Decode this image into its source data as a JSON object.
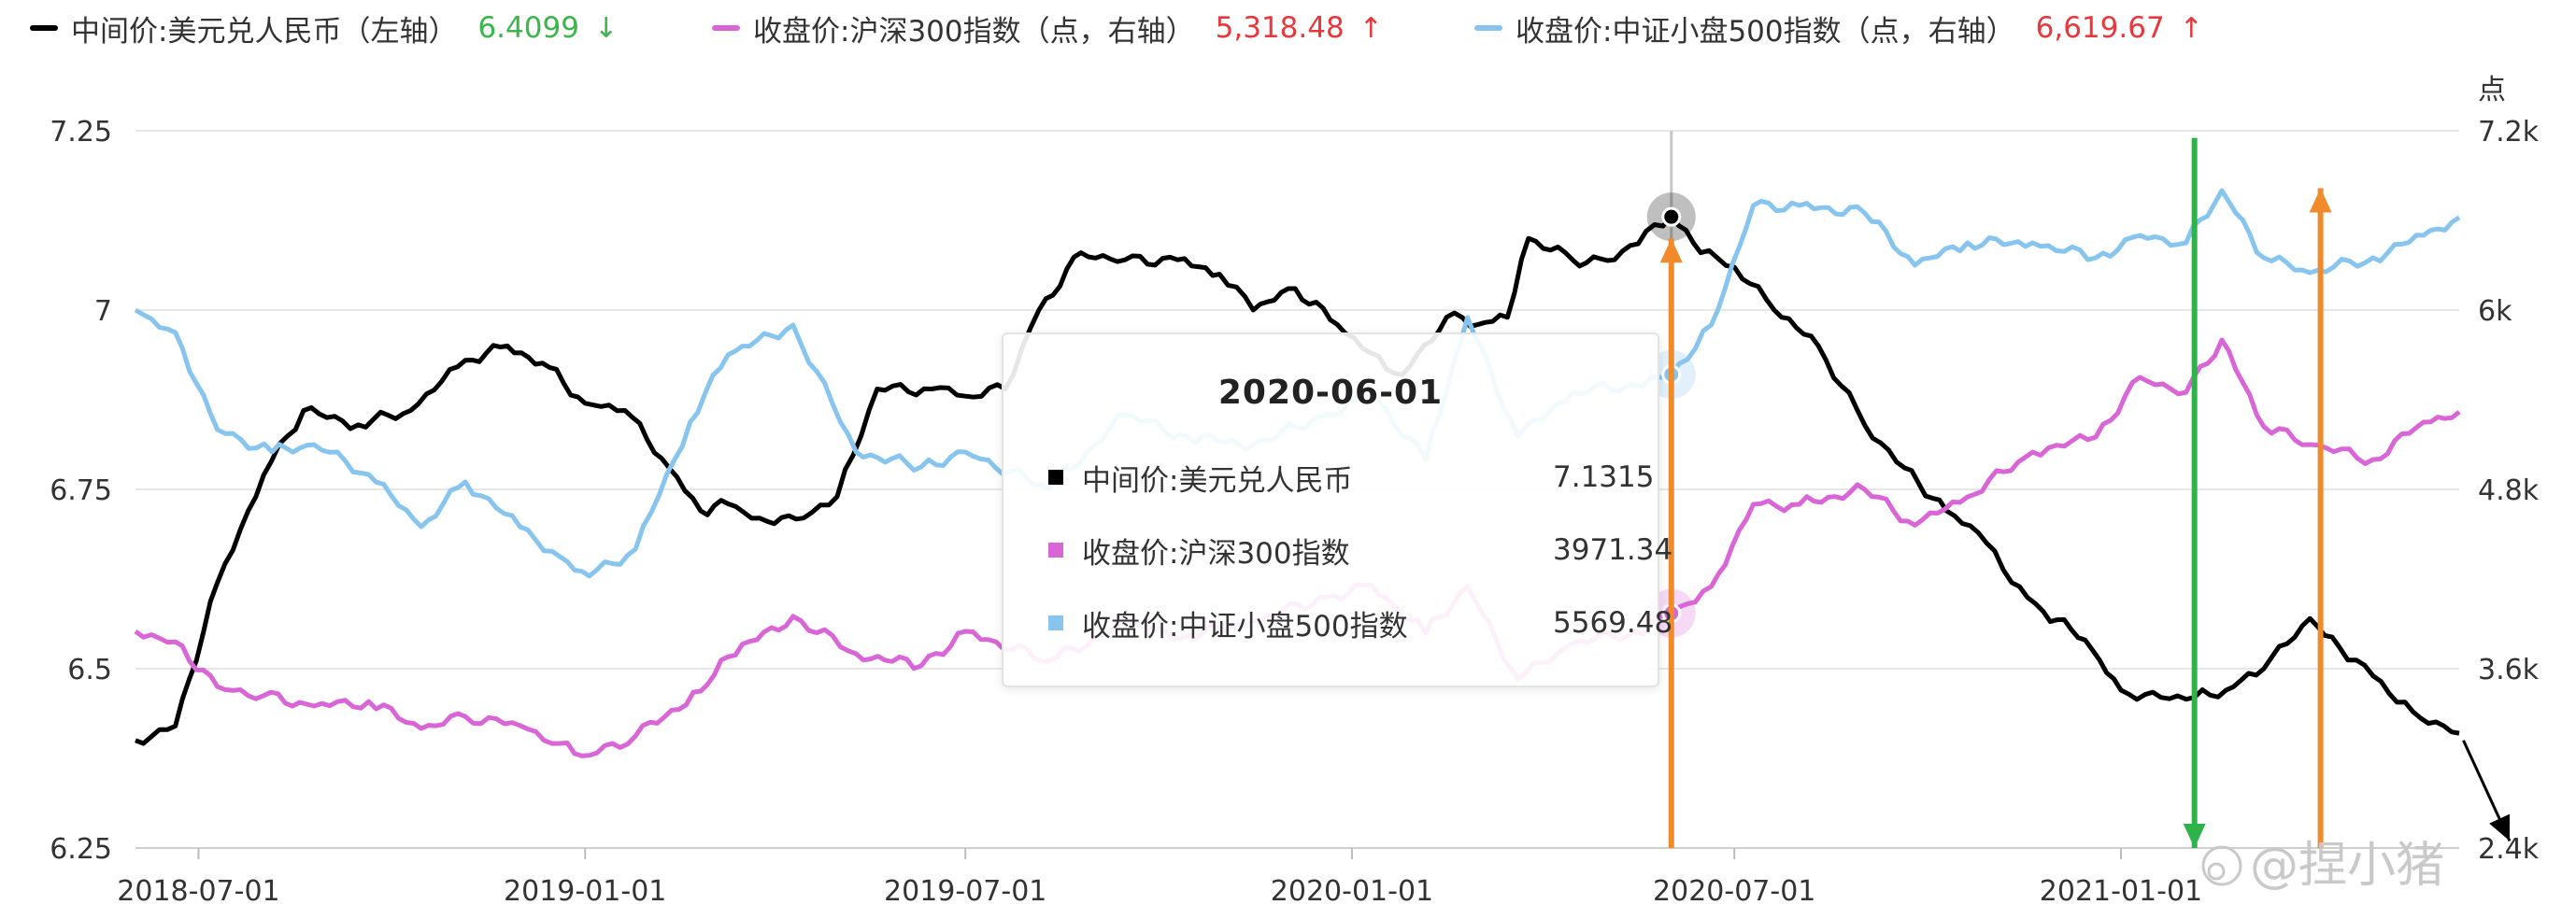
{
  "legend": [
    {
      "name": "中间价:美元兑人民币（左轴）",
      "value": "6.4099",
      "arrow": "↓",
      "color": "#000000",
      "value_color": "#3cb54a"
    },
    {
      "name": "收盘价:沪深300指数（点，右轴）",
      "value": "5,318.48",
      "arrow": "↑",
      "color": "#d966d6",
      "value_color": "#e8383d"
    },
    {
      "name": "收盘价:中证小盘500指数（点，右轴）",
      "value": "6,619.67",
      "arrow": "↑",
      "color": "#87c5ef",
      "value_color": "#e8383d"
    }
  ],
  "tooltip": {
    "date": "2020-06-01",
    "rows": [
      {
        "name": "中间价:美元兑人民币",
        "value": "7.1315",
        "color": "#000000"
      },
      {
        "name": "收盘价:沪深300指数",
        "value": "3971.34",
        "color": "#d966d6"
      },
      {
        "name": "收盘价:中证小盘500指数",
        "value": "5569.48",
        "color": "#87c5ef"
      }
    ]
  },
  "watermark": "@捏小猪",
  "chart_data": {
    "type": "line",
    "x_ticks": [
      "2018-07-01",
      "2019-01-01",
      "2019-07-01",
      "2020-01-01",
      "2020-07-01",
      "2021-01-01"
    ],
    "x_range": [
      "2018-06-01",
      "2021-06-11"
    ],
    "y_left": {
      "ticks": [
        "6.25",
        "6.5",
        "6.75",
        "7",
        "7.25"
      ],
      "range": [
        6.25,
        7.25
      ]
    },
    "y_right": {
      "unit": "点",
      "ticks": [
        "2.4k",
        "3.6k",
        "4.8k",
        "6k",
        "7.2k"
      ],
      "range": [
        2400,
        7200
      ]
    },
    "grid": true,
    "legend_position": "top",
    "series": [
      {
        "name": "中间价:美元兑人民币",
        "axis": "left",
        "color": "#000000",
        "points": [
          [
            "2018-06-01",
            6.4
          ],
          [
            "2018-06-20",
            6.42
          ],
          [
            "2018-07-10",
            6.62
          ],
          [
            "2018-08-01",
            6.77
          ],
          [
            "2018-08-20",
            6.86
          ],
          [
            "2018-09-15",
            6.84
          ],
          [
            "2018-10-10",
            6.86
          ],
          [
            "2018-11-05",
            6.93
          ],
          [
            "2018-11-25",
            6.95
          ],
          [
            "2018-12-15",
            6.92
          ],
          [
            "2019-01-01",
            6.87
          ],
          [
            "2019-01-20",
            6.86
          ],
          [
            "2019-02-10",
            6.78
          ],
          [
            "2019-02-25",
            6.72
          ],
          [
            "2019-03-10",
            6.73
          ],
          [
            "2019-03-25",
            6.71
          ],
          [
            "2019-04-15",
            6.71
          ],
          [
            "2019-05-01",
            6.74
          ],
          [
            "2019-05-20",
            6.89
          ],
          [
            "2019-06-15",
            6.89
          ],
          [
            "2019-07-01",
            6.88
          ],
          [
            "2019-07-20",
            6.89
          ],
          [
            "2019-08-05",
            7.0
          ],
          [
            "2019-08-25",
            7.08
          ],
          [
            "2019-09-15",
            7.07
          ],
          [
            "2019-10-10",
            7.07
          ],
          [
            "2019-10-30",
            7.05
          ],
          [
            "2019-11-15",
            7.0
          ],
          [
            "2019-12-05",
            7.03
          ],
          [
            "2019-12-25",
            6.98
          ],
          [
            "2020-01-10",
            6.94
          ],
          [
            "2020-01-25",
            6.91
          ],
          [
            "2020-02-15",
            6.99
          ],
          [
            "2020-03-01",
            6.98
          ],
          [
            "2020-03-15",
            6.99
          ],
          [
            "2020-03-25",
            7.1
          ],
          [
            "2020-04-15",
            7.07
          ],
          [
            "2020-05-05",
            7.07
          ],
          [
            "2020-05-20",
            7.11
          ],
          [
            "2020-06-01",
            7.13
          ],
          [
            "2020-06-15",
            7.08
          ],
          [
            "2020-07-01",
            7.06
          ],
          [
            "2020-07-20",
            7.0
          ],
          [
            "2020-08-10",
            6.95
          ],
          [
            "2020-09-01",
            6.84
          ],
          [
            "2020-09-20",
            6.78
          ],
          [
            "2020-10-10",
            6.72
          ],
          [
            "2020-10-25",
            6.69
          ],
          [
            "2020-11-10",
            6.62
          ],
          [
            "2020-11-25",
            6.58
          ],
          [
            "2020-12-15",
            6.54
          ],
          [
            "2021-01-01",
            6.47
          ],
          [
            "2021-01-20",
            6.46
          ],
          [
            "2021-02-05",
            6.46
          ],
          [
            "2021-02-20",
            6.47
          ],
          [
            "2021-03-10",
            6.5
          ],
          [
            "2021-04-01",
            6.57
          ],
          [
            "2021-04-15",
            6.53
          ],
          [
            "2021-05-01",
            6.49
          ],
          [
            "2021-05-20",
            6.44
          ],
          [
            "2021-06-11",
            6.41
          ]
        ]
      },
      {
        "name": "收盘价:沪深300指数",
        "axis": "right",
        "color": "#d966d6",
        "points": [
          [
            "2018-06-01",
            3850
          ],
          [
            "2018-06-20",
            3780
          ],
          [
            "2018-07-10",
            3480
          ],
          [
            "2018-08-01",
            3420
          ],
          [
            "2018-08-25",
            3350
          ],
          [
            "2018-09-20",
            3380
          ],
          [
            "2018-10-15",
            3200
          ],
          [
            "2018-11-05",
            3280
          ],
          [
            "2018-12-01",
            3220
          ],
          [
            "2018-12-20",
            3100
          ],
          [
            "2019-01-03",
            3020
          ],
          [
            "2019-01-25",
            3150
          ],
          [
            "2019-02-25",
            3450
          ],
          [
            "2019-03-10",
            3680
          ],
          [
            "2019-04-10",
            3950
          ],
          [
            "2019-05-10",
            3700
          ],
          [
            "2019-06-10",
            3620
          ],
          [
            "2019-07-01",
            3850
          ],
          [
            "2019-08-10",
            3650
          ],
          [
            "2019-09-15",
            3900
          ],
          [
            "2019-10-15",
            3820
          ],
          [
            "2019-11-15",
            3920
          ],
          [
            "2019-12-20",
            4080
          ],
          [
            "2020-01-10",
            4160
          ],
          [
            "2020-02-05",
            3840
          ],
          [
            "2020-02-25",
            4150
          ],
          [
            "2020-03-20",
            3530
          ],
          [
            "2020-04-15",
            3770
          ],
          [
            "2020-05-15",
            3850
          ],
          [
            "2020-06-01",
            3971
          ],
          [
            "2020-06-20",
            4150
          ],
          [
            "2020-07-10",
            4700
          ],
          [
            "2020-08-01",
            4700
          ],
          [
            "2020-09-01",
            4800
          ],
          [
            "2020-09-25",
            4560
          ],
          [
            "2020-10-20",
            4750
          ],
          [
            "2020-11-20",
            5050
          ],
          [
            "2020-12-20",
            5150
          ],
          [
            "2021-01-10",
            5550
          ],
          [
            "2021-02-01",
            5450
          ],
          [
            "2021-02-18",
            5800
          ],
          [
            "2021-03-10",
            5220
          ],
          [
            "2021-04-01",
            5100
          ],
          [
            "2021-05-01",
            5000
          ],
          [
            "2021-05-25",
            5250
          ],
          [
            "2021-06-11",
            5318
          ]
        ]
      },
      {
        "name": "收盘价:中证小盘500指数",
        "axis": "right",
        "color": "#87c5ef",
        "points": [
          [
            "2018-06-01",
            6000
          ],
          [
            "2018-06-20",
            5850
          ],
          [
            "2018-07-10",
            5200
          ],
          [
            "2018-08-05",
            5050
          ],
          [
            "2018-08-25",
            5100
          ],
          [
            "2018-09-20",
            4900
          ],
          [
            "2018-10-15",
            4550
          ],
          [
            "2018-11-05",
            4850
          ],
          [
            "2018-12-01",
            4550
          ],
          [
            "2018-12-20",
            4350
          ],
          [
            "2019-01-03",
            4220
          ],
          [
            "2019-01-25",
            4400
          ],
          [
            "2019-02-20",
            5250
          ],
          [
            "2019-03-10",
            5700
          ],
          [
            "2019-04-10",
            5900
          ],
          [
            "2019-05-10",
            5050
          ],
          [
            "2019-06-10",
            4950
          ],
          [
            "2019-07-01",
            5050
          ],
          [
            "2019-08-10",
            4800
          ],
          [
            "2019-09-15",
            5300
          ],
          [
            "2019-10-15",
            5150
          ],
          [
            "2019-11-15",
            5100
          ],
          [
            "2019-12-20",
            5300
          ],
          [
            "2020-01-10",
            5450
          ],
          [
            "2020-02-05",
            5000
          ],
          [
            "2020-02-25",
            5950
          ],
          [
            "2020-03-20",
            5150
          ],
          [
            "2020-04-15",
            5450
          ],
          [
            "2020-05-15",
            5500
          ],
          [
            "2020-06-01",
            5569
          ],
          [
            "2020-06-20",
            5900
          ],
          [
            "2020-07-10",
            6700
          ],
          [
            "2020-08-01",
            6700
          ],
          [
            "2020-09-01",
            6650
          ],
          [
            "2020-09-25",
            6300
          ],
          [
            "2020-10-20",
            6450
          ],
          [
            "2020-11-20",
            6450
          ],
          [
            "2020-12-20",
            6350
          ],
          [
            "2021-01-10",
            6500
          ],
          [
            "2021-02-01",
            6450
          ],
          [
            "2021-02-18",
            6800
          ],
          [
            "2021-03-10",
            6350
          ],
          [
            "2021-04-01",
            6250
          ],
          [
            "2021-05-01",
            6350
          ],
          [
            "2021-05-25",
            6500
          ],
          [
            "2021-06-11",
            6620
          ]
        ]
      }
    ],
    "tooltip_date": "2020-06-01",
    "annotations": [
      {
        "type": "arrow",
        "color": "#f08a2b",
        "from": [
          "2020-06-01",
          6.25
        ],
        "to": [
          "2020-06-01",
          7.1
        ]
      },
      {
        "type": "arrow",
        "color": "#f08a2b",
        "from": [
          "2021-04-06",
          6.25
        ],
        "to": [
          "2021-04-06",
          7.17
        ]
      },
      {
        "type": "arrow",
        "color": "#2db34a",
        "from": [
          "2021-02-05",
          7.24
        ],
        "to": [
          "2021-02-05",
          6.25
        ]
      },
      {
        "type": "arrow",
        "color": "#000000",
        "from": [
          "2021-06-13",
          6.4
        ],
        "to": [
          "2021-07-05",
          6.26
        ]
      }
    ]
  }
}
